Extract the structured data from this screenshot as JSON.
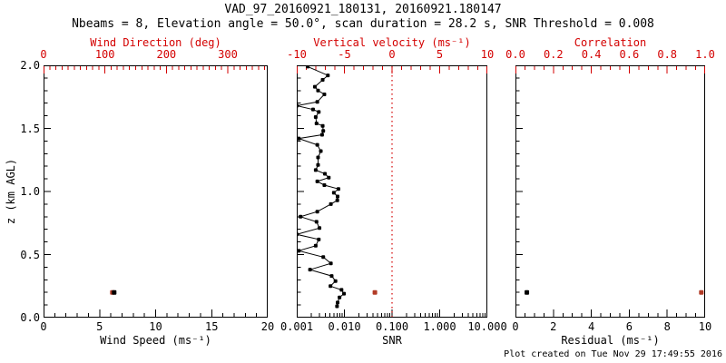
{
  "header": {
    "title": "VAD_97_20160921_180131, 20160921.180147",
    "subtitle": "Nbeams = 8, Elevation angle = 50.0°, scan duration = 28.2 s, SNR Threshold = 0.008"
  },
  "footer": {
    "created": "Plot created on Tue Nov 29 17:49:55 2016"
  },
  "colors": {
    "background": "#ffffff",
    "axis_black": "#000000",
    "axis_red": "#d40000",
    "marker_black": "#000000",
    "marker_dark_red": "#b23b26"
  },
  "y_axis": {
    "label": "z (km AGL)",
    "range": [
      0,
      2
    ],
    "ticks": [
      0.0,
      0.5,
      1.0,
      1.5,
      2.0
    ],
    "tick_labels": [
      "0.0",
      "0.5",
      "1.0",
      "1.5",
      "2.0"
    ],
    "minor_step": 0.1
  },
  "chart_data": [
    {
      "id": "wind-panel",
      "type": "scatter",
      "top_axis": {
        "label": "Wind Direction (deg)",
        "color": "#d40000",
        "scale": "linear",
        "range": [
          0,
          365
        ],
        "ticks": [
          0,
          100,
          200,
          300
        ],
        "tick_labels": [
          "0",
          "100",
          "200",
          "300"
        ],
        "minor_step": 10
      },
      "bottom_axis": {
        "label": "Wind Speed (ms⁻¹)",
        "color": "#000000",
        "scale": "linear",
        "range": [
          0,
          20
        ],
        "ticks": [
          0,
          5,
          10,
          15,
          20
        ],
        "tick_labels": [
          "0",
          "5",
          "10",
          "15",
          "20"
        ],
        "minor_step": 1
      },
      "series": [
        {
          "name": "wind-direction",
          "axis": "top",
          "color": "#b23b26",
          "line": false,
          "marker": 5,
          "points": [
            [
              112,
              0.2
            ]
          ]
        },
        {
          "name": "wind-speed",
          "axis": "bottom",
          "color": "#000000",
          "line": false,
          "marker": 5,
          "points": [
            [
              6.3,
              0.2
            ]
          ]
        }
      ]
    },
    {
      "id": "snr-panel",
      "type": "line",
      "top_axis": {
        "label": "Vertical velocity (ms⁻¹)",
        "color": "#d40000",
        "scale": "linear",
        "range": [
          -10,
          10
        ],
        "ticks": [
          -10,
          -5,
          0,
          5,
          10
        ],
        "tick_labels": [
          "-10",
          "-5",
          "0",
          "5",
          "10"
        ],
        "minor_step": 1
      },
      "bottom_axis": {
        "label": "SNR",
        "color": "#000000",
        "scale": "log",
        "range": [
          0.001,
          10
        ],
        "ticks": [
          0.001,
          0.01,
          0.1,
          1,
          10
        ],
        "tick_labels": [
          "0.001",
          "0.010",
          "0.100",
          "1.000",
          "10.000"
        ]
      },
      "reference_line": {
        "axis": "top",
        "value": 0,
        "color": "#d40000",
        "style": "dotted"
      },
      "series": [
        {
          "name": "snr-profile",
          "axis": "bottom",
          "color": "#000000",
          "line": true,
          "marker": 4,
          "points": [
            [
              0.007,
              0.09
            ],
            [
              0.0072,
              0.12
            ],
            [
              0.0079,
              0.16
            ],
            [
              0.0098,
              0.19
            ],
            [
              0.0087,
              0.22
            ],
            [
              0.0051,
              0.25
            ],
            [
              0.0065,
              0.29
            ],
            [
              0.0054,
              0.33
            ],
            [
              0.0019,
              0.38
            ],
            [
              0.0052,
              0.43
            ],
            [
              0.0036,
              0.48
            ],
            [
              0.0011,
              0.53
            ],
            [
              0.0025,
              0.57
            ],
            [
              0.0029,
              0.62
            ],
            [
              0.001,
              0.66
            ],
            [
              0.003,
              0.71
            ],
            [
              0.0026,
              0.76
            ],
            [
              0.0012,
              0.8
            ],
            [
              0.0027,
              0.84
            ],
            [
              0.0052,
              0.9
            ],
            [
              0.0071,
              0.93
            ],
            [
              0.0072,
              0.96
            ],
            [
              0.006,
              0.99
            ],
            [
              0.0075,
              1.02
            ],
            [
              0.0038,
              1.05
            ],
            [
              0.0027,
              1.08
            ],
            [
              0.0047,
              1.11
            ],
            [
              0.0039,
              1.14
            ],
            [
              0.0025,
              1.17
            ],
            [
              0.0028,
              1.21
            ],
            [
              0.0028,
              1.27
            ],
            [
              0.0032,
              1.32
            ],
            [
              0.0027,
              1.37
            ],
            [
              0.0011,
              1.42
            ],
            [
              0.0034,
              1.45
            ],
            [
              0.0036,
              1.48
            ],
            [
              0.0035,
              1.52
            ],
            [
              0.0026,
              1.54
            ],
            [
              0.0025,
              1.59
            ],
            [
              0.0029,
              1.63
            ],
            [
              0.0022,
              1.65
            ],
            [
              0.001,
              1.68
            ],
            [
              0.0027,
              1.71
            ],
            [
              0.0038,
              1.77
            ],
            [
              0.0028,
              1.8
            ],
            [
              0.0024,
              1.83
            ],
            [
              0.0035,
              1.885
            ],
            [
              0.0045,
              1.92
            ],
            [
              0.0017,
              1.99
            ]
          ]
        },
        {
          "name": "vertical-velocity",
          "axis": "top",
          "color": "#b23b26",
          "line": false,
          "marker": 5,
          "points": [
            [
              -1.8,
              0.2
            ]
          ]
        }
      ]
    },
    {
      "id": "residual-panel",
      "type": "scatter",
      "top_axis": {
        "label": "Correlation",
        "color": "#d40000",
        "scale": "linear",
        "range": [
          0,
          1
        ],
        "ticks": [
          0.0,
          0.2,
          0.4,
          0.6,
          0.8,
          1.0
        ],
        "tick_labels": [
          "0.0",
          "0.2",
          "0.4",
          "0.6",
          "0.8",
          "1.0"
        ],
        "minor_step": 0.05
      },
      "bottom_axis": {
        "label": "Residual (ms⁻¹)",
        "color": "#000000",
        "scale": "linear",
        "range": [
          0,
          10
        ],
        "ticks": [
          0,
          2,
          4,
          6,
          8,
          10
        ],
        "tick_labels": [
          "0",
          "2",
          "4",
          "6",
          "8",
          "10"
        ],
        "minor_step": 0.5
      },
      "series": [
        {
          "name": "correlation",
          "axis": "top",
          "color": "#b23b26",
          "line": false,
          "marker": 5,
          "points": [
            [
              0.98,
              0.2
            ]
          ]
        },
        {
          "name": "residual",
          "axis": "bottom",
          "color": "#000000",
          "line": false,
          "marker": 5,
          "points": [
            [
              0.6,
              0.2
            ]
          ]
        }
      ]
    }
  ]
}
